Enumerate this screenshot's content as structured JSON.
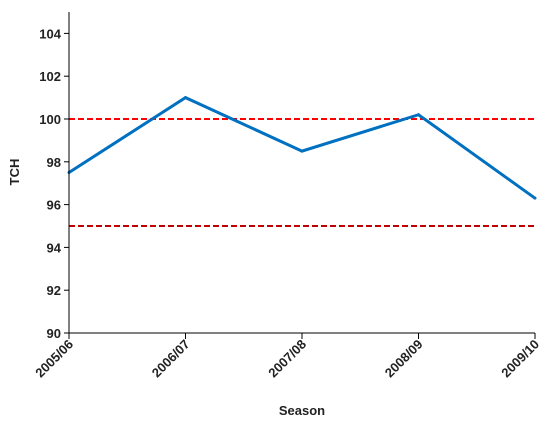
{
  "chart_data": {
    "type": "line",
    "title": "",
    "xlabel": "Season",
    "ylabel": "TCH",
    "categories": [
      "2005/06",
      "2006/07",
      "2007/08",
      "2008/09",
      "2009/10"
    ],
    "series": [
      {
        "values": [
          97.5,
          101.0,
          98.5,
          100.2,
          96.3
        ],
        "color": "#0070C0"
      }
    ],
    "reference_lines": [
      {
        "y": 100,
        "color": "#FF0000",
        "style": "dashed"
      },
      {
        "y": 95,
        "color": "#C00000",
        "style": "dashed"
      }
    ],
    "ylim": [
      90,
      105
    ],
    "yticks": [
      90,
      92,
      94,
      96,
      98,
      100,
      102,
      104
    ],
    "grid": false,
    "legend": "none"
  }
}
